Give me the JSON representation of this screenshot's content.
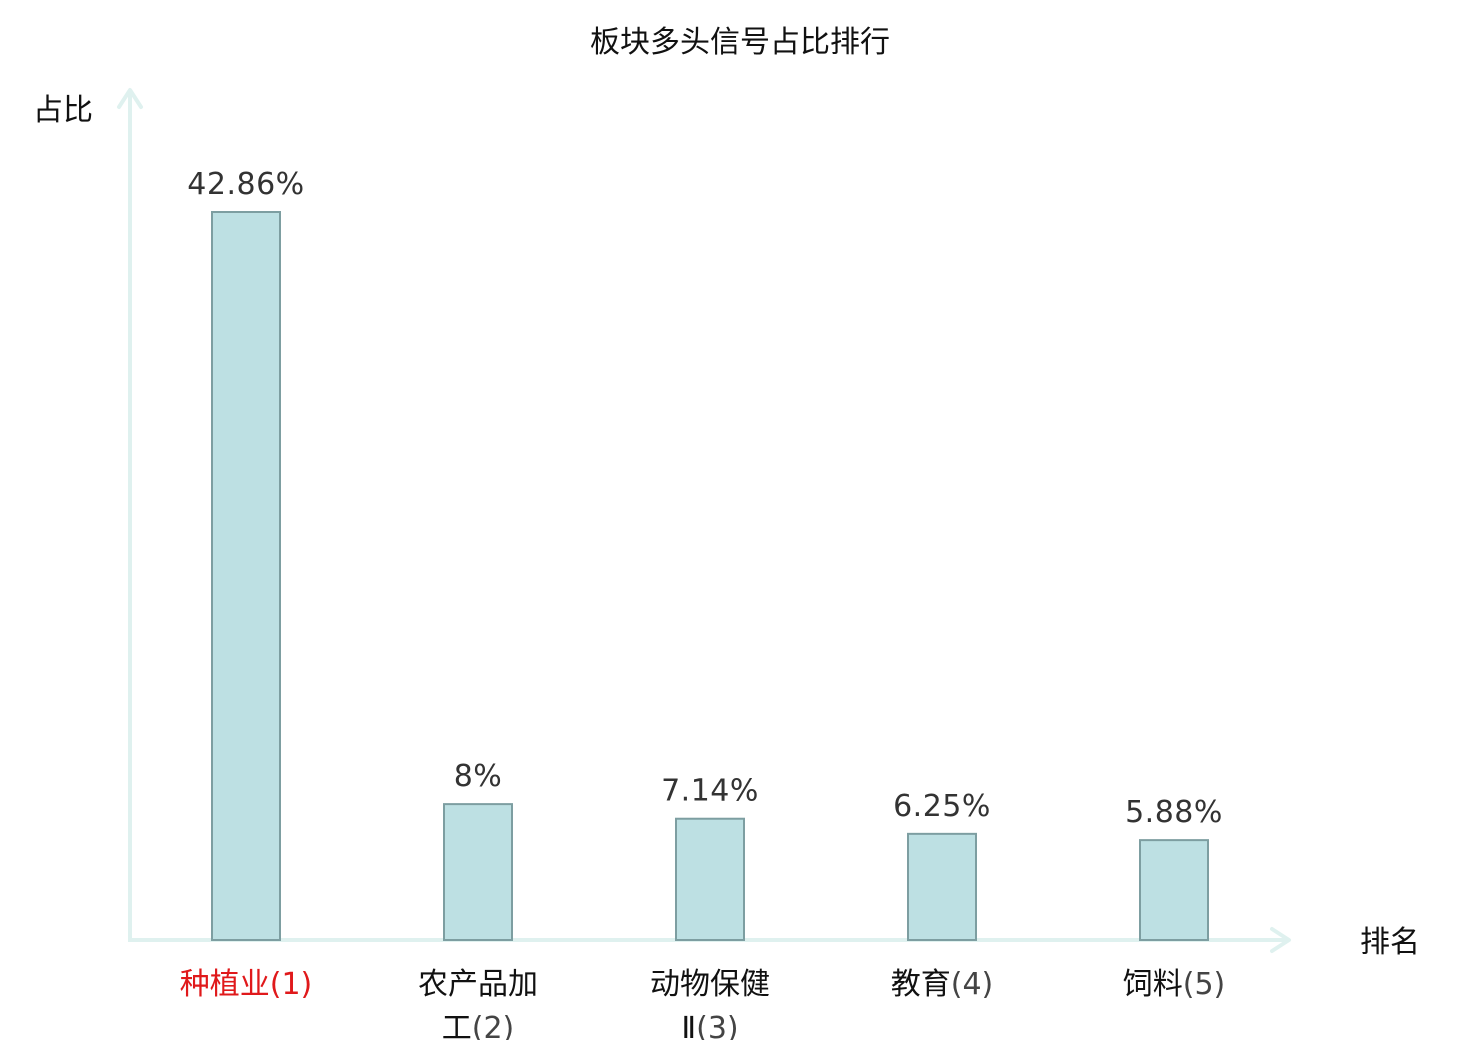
{
  "chart_data": {
    "type": "bar",
    "title": "板块多头信号占比排行",
    "ylabel": "占比",
    "xlabel": "排名",
    "ylim": [
      0,
      50
    ],
    "grid": false,
    "categories": [
      {
        "name": "种植业",
        "rank": "(1)",
        "highlight": true
      },
      {
        "name": "农产品加工",
        "rank": "(2)",
        "highlight": false
      },
      {
        "name": "动物保健Ⅱ",
        "rank": "(3)",
        "highlight": false
      },
      {
        "name": "教育",
        "rank": "(4)",
        "highlight": false
      },
      {
        "name": "饲料",
        "rank": "(5)",
        "highlight": false
      }
    ],
    "values": [
      42.86,
      8,
      7.14,
      6.25,
      5.88
    ],
    "value_labels": [
      "42.86%",
      "8%",
      "7.14%",
      "6.25%",
      "5.88%"
    ],
    "colors": {
      "bar_fill": "#bde0e3",
      "bar_stroke": "#7d9ea1",
      "axis": "#dff1ef",
      "highlight_text": "#e0191b",
      "text": "#111111",
      "rank_text": "#444444"
    }
  }
}
